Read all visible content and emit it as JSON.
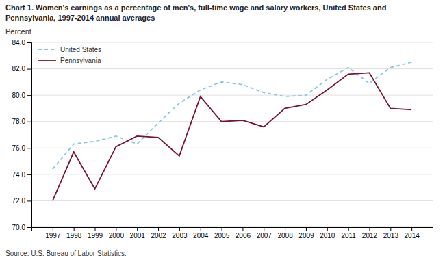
{
  "chart_data": {
    "type": "line",
    "title": [
      "Chart 1. Women's earnings as a percentage of men's, full-time wage and salary workers, United States and",
      "Pennsylvania, 1997-2014 annual averages"
    ],
    "y_label": "Percent",
    "source": "Source: U.S. Bureau of Labor Statistics.",
    "x": [
      1997,
      1998,
      1999,
      2000,
      2001,
      2002,
      2003,
      2004,
      2005,
      2006,
      2007,
      2008,
      2009,
      2010,
      2011,
      2012,
      2013,
      2014
    ],
    "series": [
      {
        "name": "United States",
        "color": "#89C4E1",
        "line_style": "dashed",
        "values": [
          74.4,
          76.3,
          76.5,
          76.9,
          76.3,
          77.9,
          79.4,
          80.4,
          81.0,
          80.8,
          80.2,
          79.9,
          80.0,
          81.2,
          82.1,
          80.9,
          82.1,
          82.5
        ]
      },
      {
        "name": "Pennsylvania",
        "color": "#7B1230",
        "line_style": "solid",
        "values": [
          72.0,
          75.7,
          72.9,
          76.1,
          76.9,
          76.8,
          75.4,
          79.9,
          78.0,
          78.1,
          77.6,
          79.0,
          79.3,
          80.4,
          81.6,
          81.7,
          79.0,
          78.9
        ]
      }
    ],
    "xlim": [
      1996,
      2015
    ],
    "xticks": [
      1997,
      1998,
      1999,
      2000,
      2001,
      2002,
      2003,
      2004,
      2005,
      2006,
      2007,
      2008,
      2009,
      2010,
      2011,
      2012,
      2013,
      2014
    ],
    "ylim": [
      70.0,
      84.0
    ],
    "yticks": [
      {
        "value": 70.0,
        "label": "70.0"
      },
      {
        "value": 72.0,
        "label": "72.0"
      },
      {
        "value": 74.0,
        "label": "74.0"
      },
      {
        "value": 76.0,
        "label": "76.0"
      },
      {
        "value": 78.0,
        "label": "78.0"
      },
      {
        "value": 80.0,
        "label": "80.0"
      },
      {
        "value": 82.0,
        "label": "82.0"
      },
      {
        "value": 84.0,
        "label": "84.0"
      }
    ],
    "grid": true,
    "legend": "upper left"
  }
}
